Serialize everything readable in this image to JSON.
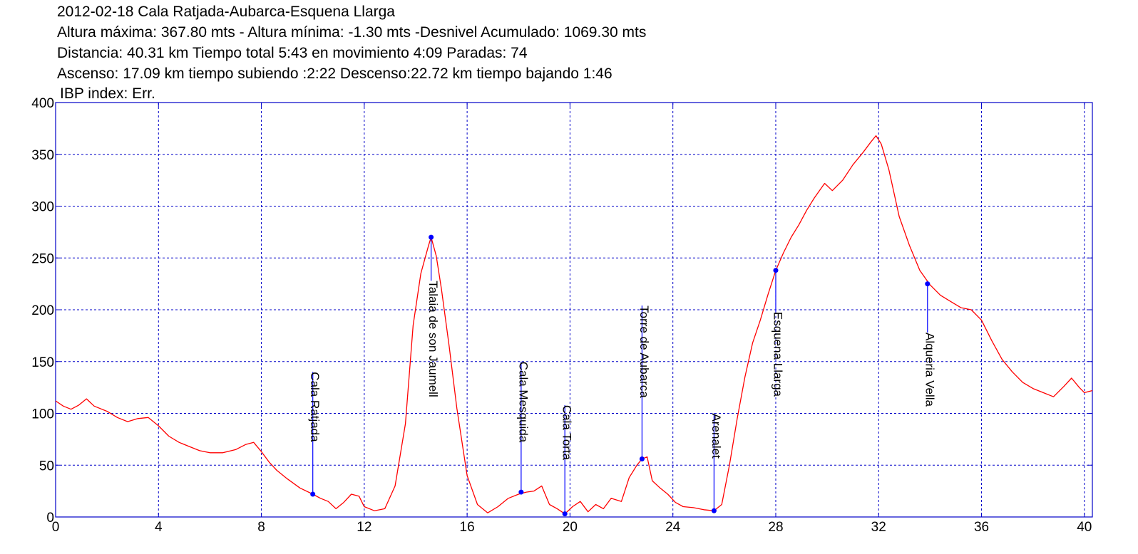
{
  "header": {
    "title": "2012-02-18 Cala Ratjada-Aubarca-Esquena Llarga",
    "line2": "Altura máxima: 367.80 mts - Altura mínima: -1.30 mts -Desnivel Acumulado: 1069.30 mts",
    "line3": "Distancia: 40.31 km  Tiempo total 5:43  en movimiento 4:09 Paradas: 74",
    "line4": "Ascenso: 17.09 km  tiempo subiendo :2:22  Descenso:22.72 km tiempo bajando 1:46",
    "ibp": "IBP index: Err."
  },
  "chart_data": {
    "type": "line",
    "title": "2012-02-18 Cala Ratjada-Aubarca-Esquena Llarga",
    "xlabel": "",
    "ylabel": "",
    "xlim": [
      0,
      40.31
    ],
    "ylim": [
      0,
      400
    ],
    "x_ticks": [
      0,
      4,
      8,
      12,
      16,
      20,
      24,
      28,
      32,
      36,
      40
    ],
    "y_ticks": [
      0,
      50,
      100,
      150,
      200,
      250,
      300,
      350,
      400
    ],
    "grid": true,
    "colors": {
      "profile": "#ff0000",
      "frame": "#0000c8",
      "grid": "#0000c8",
      "waypoint": "#0000ff"
    },
    "series": [
      {
        "points": [
          [
            0,
            112
          ],
          [
            0.3,
            107
          ],
          [
            0.6,
            104
          ],
          [
            0.9,
            108
          ],
          [
            1.2,
            114
          ],
          [
            1.5,
            107
          ],
          [
            2.0,
            102
          ],
          [
            2.4,
            96
          ],
          [
            2.8,
            92
          ],
          [
            3.2,
            95
          ],
          [
            3.6,
            96
          ],
          [
            4.0,
            88
          ],
          [
            4.4,
            78
          ],
          [
            4.8,
            72
          ],
          [
            5.2,
            68
          ],
          [
            5.6,
            64
          ],
          [
            6.0,
            62
          ],
          [
            6.5,
            62
          ],
          [
            7.0,
            65
          ],
          [
            7.4,
            70
          ],
          [
            7.7,
            72
          ],
          [
            8.0,
            63
          ],
          [
            8.3,
            53
          ],
          [
            8.6,
            45
          ],
          [
            9.0,
            37
          ],
          [
            9.5,
            28
          ],
          [
            10.0,
            22
          ],
          [
            10.3,
            18
          ],
          [
            10.6,
            15
          ],
          [
            10.9,
            8
          ],
          [
            11.2,
            14
          ],
          [
            11.5,
            22
          ],
          [
            11.8,
            20
          ],
          [
            12.0,
            10
          ],
          [
            12.4,
            6
          ],
          [
            12.8,
            8
          ],
          [
            13.2,
            30
          ],
          [
            13.6,
            90
          ],
          [
            13.9,
            185
          ],
          [
            14.2,
            235
          ],
          [
            14.5,
            262
          ],
          [
            14.6,
            270
          ],
          [
            14.8,
            252
          ],
          [
            15.0,
            220
          ],
          [
            15.3,
            165
          ],
          [
            15.6,
            105
          ],
          [
            16.0,
            40
          ],
          [
            16.4,
            12
          ],
          [
            16.8,
            4
          ],
          [
            17.2,
            10
          ],
          [
            17.6,
            18
          ],
          [
            18.0,
            22
          ],
          [
            18.3,
            24
          ],
          [
            18.6,
            25
          ],
          [
            18.9,
            30
          ],
          [
            19.2,
            12
          ],
          [
            19.5,
            8
          ],
          [
            19.8,
            3
          ],
          [
            20.1,
            10
          ],
          [
            20.4,
            15
          ],
          [
            20.7,
            5
          ],
          [
            21.0,
            12
          ],
          [
            21.3,
            8
          ],
          [
            21.6,
            18
          ],
          [
            22.0,
            15
          ],
          [
            22.3,
            38
          ],
          [
            22.6,
            50
          ],
          [
            22.8,
            56
          ],
          [
            23.0,
            58
          ],
          [
            23.2,
            35
          ],
          [
            23.5,
            28
          ],
          [
            23.8,
            22
          ],
          [
            24.1,
            14
          ],
          [
            24.4,
            10
          ],
          [
            24.8,
            9
          ],
          [
            25.2,
            7
          ],
          [
            25.6,
            6
          ],
          [
            25.9,
            12
          ],
          [
            26.2,
            50
          ],
          [
            26.5,
            95
          ],
          [
            26.8,
            135
          ],
          [
            27.1,
            168
          ],
          [
            27.4,
            190
          ],
          [
            27.7,
            215
          ],
          [
            28.0,
            238
          ],
          [
            28.3,
            255
          ],
          [
            28.6,
            270
          ],
          [
            28.9,
            282
          ],
          [
            29.2,
            296
          ],
          [
            29.5,
            308
          ],
          [
            29.9,
            322
          ],
          [
            30.2,
            315
          ],
          [
            30.6,
            325
          ],
          [
            31.0,
            340
          ],
          [
            31.4,
            352
          ],
          [
            31.7,
            362
          ],
          [
            31.9,
            368
          ],
          [
            32.1,
            360
          ],
          [
            32.4,
            335
          ],
          [
            32.8,
            290
          ],
          [
            33.2,
            262
          ],
          [
            33.6,
            238
          ],
          [
            34.0,
            224
          ],
          [
            34.4,
            214
          ],
          [
            34.8,
            208
          ],
          [
            35.2,
            202
          ],
          [
            35.6,
            200
          ],
          [
            36.0,
            190
          ],
          [
            36.4,
            170
          ],
          [
            36.8,
            152
          ],
          [
            37.2,
            140
          ],
          [
            37.6,
            130
          ],
          [
            38.0,
            124
          ],
          [
            38.4,
            120
          ],
          [
            38.8,
            116
          ],
          [
            39.2,
            126
          ],
          [
            39.5,
            134
          ],
          [
            39.8,
            125
          ],
          [
            40.0,
            120
          ],
          [
            40.31,
            122
          ]
        ]
      }
    ],
    "waypoints": [
      {
        "name": "Cala Ratjada",
        "x": 10.0,
        "y": 22,
        "label_top": 140
      },
      {
        "name": "Talaia de son Jaumell",
        "x": 14.6,
        "y": 270,
        "label_top": 228
      },
      {
        "name": "Cala Mesquida",
        "x": 18.1,
        "y": 24,
        "label_top": 150
      },
      {
        "name": "Cala Torta",
        "x": 19.8,
        "y": 3,
        "label_top": 108
      },
      {
        "name": "Torre de Aubarca",
        "x": 22.8,
        "y": 56,
        "label_top": 204
      },
      {
        "name": "Arenalet",
        "x": 25.6,
        "y": 6,
        "label_top": 100
      },
      {
        "name": "Esquena Llarga",
        "x": 28.0,
        "y": 238,
        "label_top": 198
      },
      {
        "name": "Alqueria Vella",
        "x": 33.9,
        "y": 225,
        "label_top": 178
      }
    ]
  }
}
